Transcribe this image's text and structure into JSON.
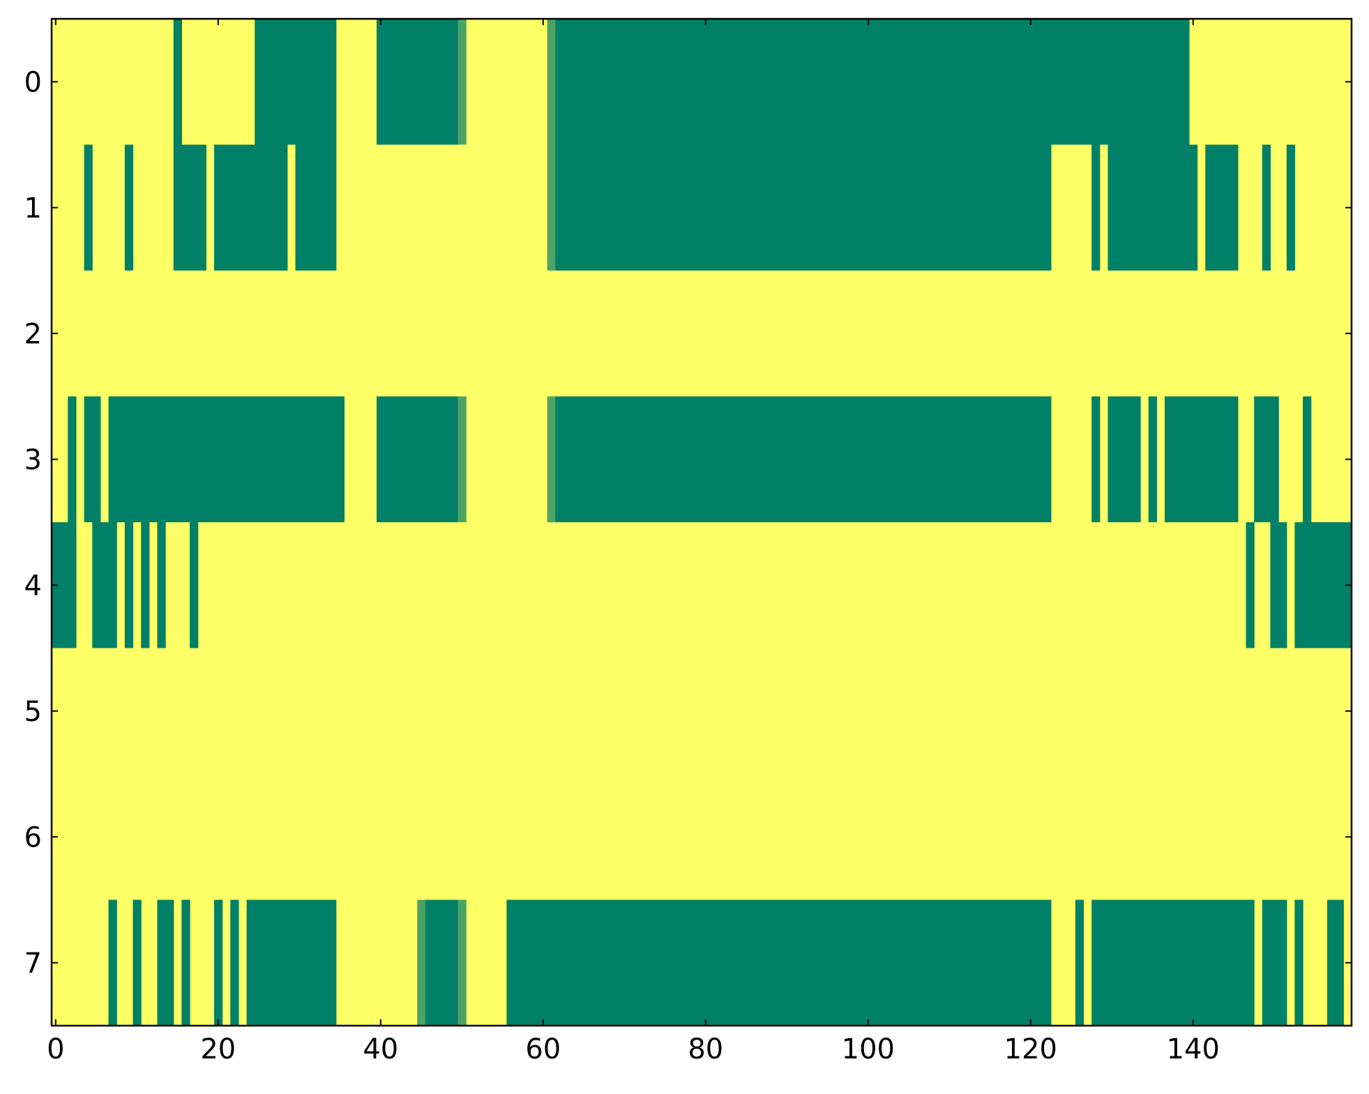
{
  "chart_data": {
    "type": "heatmap",
    "title": "",
    "xlabel": "",
    "ylabel": "",
    "xlim": [
      -0.5,
      159.5
    ],
    "ylim": [
      7.5,
      -0.5
    ],
    "x_ticks": [
      0,
      20,
      40,
      60,
      80,
      100,
      120,
      140
    ],
    "x_tick_labels": [
      "0",
      "20",
      "40",
      "60",
      "80",
      "100",
      "120",
      "140"
    ],
    "y_ticks": [
      0,
      1,
      2,
      3,
      4,
      5,
      6,
      7
    ],
    "y_tick_labels": [
      "0",
      "1",
      "2",
      "3",
      "4",
      "5",
      "6",
      "7"
    ],
    "grid": false,
    "n_columns": 160,
    "n_rows": 8,
    "colors": {
      "low": "#ffff66",
      "high": "#008066",
      "mid": "#4ca366"
    },
    "background_value": "low",
    "rows": [
      {
        "row": 0,
        "runs": [
          {
            "start": 15,
            "end": 15,
            "value": "high"
          },
          {
            "start": 25,
            "end": 34,
            "value": "high"
          },
          {
            "start": 40,
            "end": 49,
            "value": "high"
          },
          {
            "start": 50,
            "end": 50,
            "value": "mid"
          },
          {
            "start": 61,
            "end": 61,
            "value": "mid"
          },
          {
            "start": 62,
            "end": 139,
            "value": "high"
          }
        ]
      },
      {
        "row": 1,
        "runs": [
          {
            "start": 4,
            "end": 4,
            "value": "high"
          },
          {
            "start": 9,
            "end": 9,
            "value": "high"
          },
          {
            "start": 15,
            "end": 18,
            "value": "high"
          },
          {
            "start": 20,
            "end": 28,
            "value": "high"
          },
          {
            "start": 30,
            "end": 34,
            "value": "high"
          },
          {
            "start": 61,
            "end": 61,
            "value": "mid"
          },
          {
            "start": 62,
            "end": 122,
            "value": "high"
          },
          {
            "start": 128,
            "end": 128,
            "value": "high"
          },
          {
            "start": 130,
            "end": 140,
            "value": "high"
          },
          {
            "start": 142,
            "end": 145,
            "value": "high"
          },
          {
            "start": 149,
            "end": 149,
            "value": "high"
          },
          {
            "start": 152,
            "end": 152,
            "value": "high"
          }
        ]
      },
      {
        "row": 2,
        "runs": []
      },
      {
        "row": 3,
        "runs": [
          {
            "start": 2,
            "end": 2,
            "value": "high"
          },
          {
            "start": 4,
            "end": 5,
            "value": "high"
          },
          {
            "start": 7,
            "end": 35,
            "value": "high"
          },
          {
            "start": 40,
            "end": 49,
            "value": "high"
          },
          {
            "start": 50,
            "end": 50,
            "value": "mid"
          },
          {
            "start": 61,
            "end": 61,
            "value": "mid"
          },
          {
            "start": 62,
            "end": 122,
            "value": "high"
          },
          {
            "start": 128,
            "end": 128,
            "value": "high"
          },
          {
            "start": 130,
            "end": 133,
            "value": "high"
          },
          {
            "start": 135,
            "end": 135,
            "value": "high"
          },
          {
            "start": 137,
            "end": 145,
            "value": "high"
          },
          {
            "start": 148,
            "end": 150,
            "value": "high"
          },
          {
            "start": 154,
            "end": 154,
            "value": "high"
          }
        ]
      },
      {
        "row": 4,
        "runs": [
          {
            "start": 0,
            "end": 2,
            "value": "high"
          },
          {
            "start": 5,
            "end": 7,
            "value": "high"
          },
          {
            "start": 9,
            "end": 9,
            "value": "high"
          },
          {
            "start": 11,
            "end": 11,
            "value": "high"
          },
          {
            "start": 13,
            "end": 13,
            "value": "high"
          },
          {
            "start": 17,
            "end": 17,
            "value": "high"
          },
          {
            "start": 147,
            "end": 147,
            "value": "high"
          },
          {
            "start": 150,
            "end": 151,
            "value": "high"
          },
          {
            "start": 153,
            "end": 159,
            "value": "high"
          }
        ]
      },
      {
        "row": 5,
        "runs": []
      },
      {
        "row": 6,
        "runs": []
      },
      {
        "row": 7,
        "runs": [
          {
            "start": 7,
            "end": 7,
            "value": "high"
          },
          {
            "start": 10,
            "end": 10,
            "value": "high"
          },
          {
            "start": 13,
            "end": 14,
            "value": "high"
          },
          {
            "start": 16,
            "end": 16,
            "value": "high"
          },
          {
            "start": 20,
            "end": 20,
            "value": "high"
          },
          {
            "start": 22,
            "end": 22,
            "value": "high"
          },
          {
            "start": 24,
            "end": 34,
            "value": "high"
          },
          {
            "start": 45,
            "end": 45,
            "value": "mid"
          },
          {
            "start": 46,
            "end": 49,
            "value": "high"
          },
          {
            "start": 50,
            "end": 50,
            "value": "mid"
          },
          {
            "start": 56,
            "end": 122,
            "value": "high"
          },
          {
            "start": 126,
            "end": 126,
            "value": "high"
          },
          {
            "start": 128,
            "end": 147,
            "value": "high"
          },
          {
            "start": 149,
            "end": 151,
            "value": "high"
          },
          {
            "start": 153,
            "end": 153,
            "value": "high"
          },
          {
            "start": 157,
            "end": 158,
            "value": "high"
          }
        ]
      }
    ]
  }
}
